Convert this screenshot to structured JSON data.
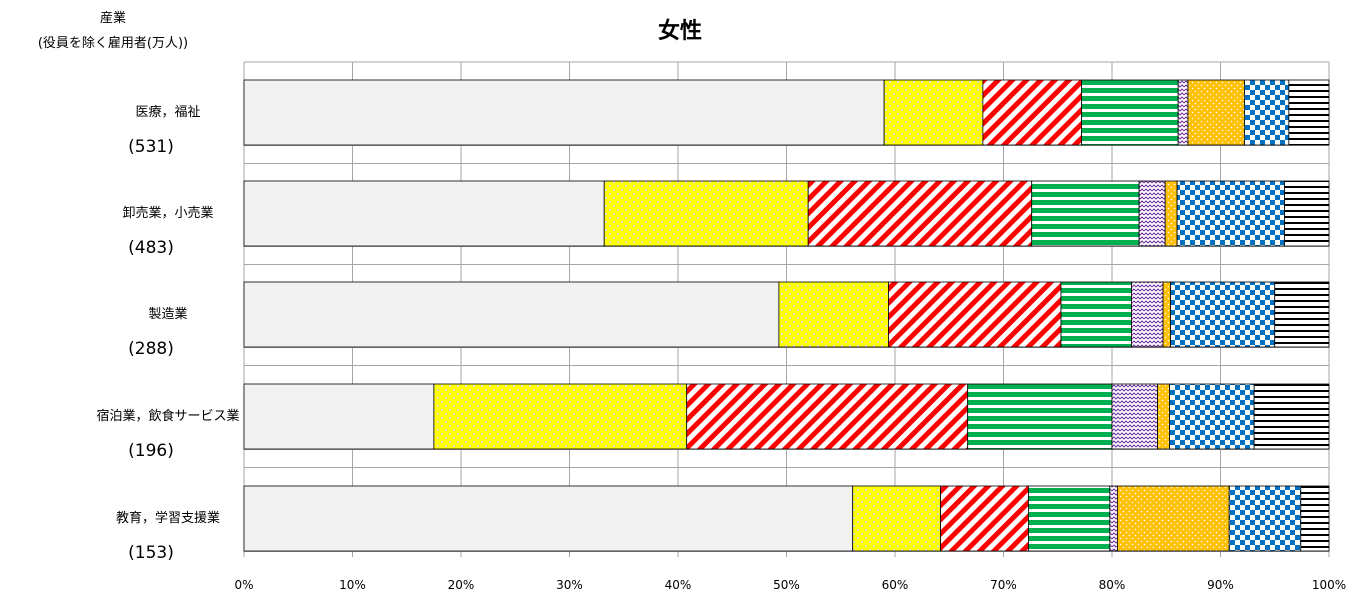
{
  "chart_data": {
    "type": "bar",
    "orientation": "horizontal",
    "stacked": "percent",
    "title": "女性",
    "y_header": [
      "産業",
      "(役員を除く雇用者(万人))"
    ],
    "categories": [
      "医療，福祉",
      "卸売業，小売業",
      "製造業",
      "宿泊業，飲食サービス業",
      "教育，学習支援業"
    ],
    "counts": [
      "(531)",
      "(483)",
      "(288)",
      "(196)",
      "(153)"
    ],
    "x_ticks": [
      "0%",
      "10%",
      "20%",
      "30%",
      "40%",
      "50%",
      "60%",
      "70%",
      "80%",
      "90%",
      "100%"
    ],
    "xlim": [
      0,
      100
    ],
    "grid": true,
    "legend": "none",
    "series": [
      {
        "pattern": "solid",
        "color": "#f2f2f2",
        "values": [
          59.0,
          33.2,
          49.3,
          17.5,
          56.1
        ]
      },
      {
        "pattern": "dots",
        "color": "#ffff00",
        "values": [
          9.1,
          18.8,
          10.1,
          23.3,
          8.1
        ]
      },
      {
        "pattern": "diagonal-stripes",
        "color": "#ff0000",
        "values": [
          9.1,
          20.6,
          15.9,
          25.9,
          8.1
        ]
      },
      {
        "pattern": "horizontal-stripes",
        "color": "#00b050",
        "values": [
          8.9,
          9.9,
          6.5,
          13.3,
          7.5
        ]
      },
      {
        "pattern": "zigzag",
        "color": "#7030a0",
        "values": [
          0.9,
          2.4,
          2.9,
          4.2,
          0.7
        ]
      },
      {
        "pattern": "dots",
        "color": "#ffc000",
        "values": [
          5.2,
          1.1,
          0.7,
          1.1,
          10.3
        ]
      },
      {
        "pattern": "checker",
        "color": "#0070c0",
        "values": [
          4.1,
          9.9,
          9.6,
          7.8,
          6.6
        ]
      },
      {
        "pattern": "horizontal-lines",
        "color": "#000000",
        "values": [
          3.7,
          4.1,
          5.0,
          6.9,
          2.6
        ]
      }
    ]
  }
}
